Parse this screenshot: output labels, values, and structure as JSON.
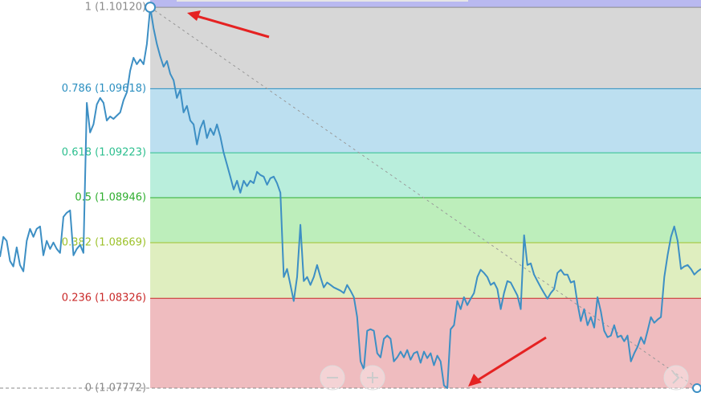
{
  "chart_data": {
    "type": "line",
    "ylim": [
      1.07668,
      1.10165
    ],
    "series": [
      {
        "color": "#3d8fc4",
        "values": [
          1.08581,
          1.08705,
          1.0868,
          1.08556,
          1.08522,
          1.0864,
          1.08531,
          1.08492,
          1.0868,
          1.08754,
          1.08705,
          1.08754,
          1.08769,
          1.08591,
          1.0868,
          1.0863,
          1.0867,
          1.0863,
          1.08606,
          1.08828,
          1.08853,
          1.08868,
          1.08591,
          1.0863,
          1.08655,
          1.08606,
          1.09531,
          1.09348,
          1.09398,
          1.09521,
          1.09561,
          1.09531,
          1.09422,
          1.09447,
          1.09432,
          1.09452,
          1.09472,
          1.09546,
          1.09596,
          1.09729,
          1.09809,
          1.09769,
          1.09799,
          1.09769,
          1.09893,
          1.1012,
          1.09992,
          1.09893,
          1.09818,
          1.09754,
          1.09789,
          1.0971,
          1.0967,
          1.09561,
          1.09611,
          1.09472,
          1.09512,
          1.09422,
          1.09398,
          1.09274,
          1.09373,
          1.09422,
          1.09314,
          1.09373,
          1.09333,
          1.09398,
          1.09323,
          1.09224,
          1.0915,
          1.09076,
          1.08997,
          1.09051,
          1.08977,
          1.09051,
          1.09017,
          1.09051,
          1.09036,
          1.09106,
          1.09086,
          1.09076,
          1.09026,
          1.09066,
          1.09076,
          1.09036,
          1.08977,
          1.08457,
          1.08507,
          1.08408,
          1.08309,
          1.08457,
          1.08779,
          1.08432,
          1.08457,
          1.08408,
          1.08457,
          1.08531,
          1.08457,
          1.08393,
          1.08423,
          1.08408,
          1.08393,
          1.08383,
          1.08373,
          1.08358,
          1.08408,
          1.08373,
          1.08333,
          1.0821,
          1.07937,
          1.07888,
          1.08126,
          1.08135,
          1.08126,
          1.07987,
          1.07962,
          1.08076,
          1.08096,
          1.08076,
          1.07937,
          1.07962,
          1.07997,
          1.07962,
          1.08007,
          1.07947,
          1.07987,
          1.07997,
          1.07928,
          1.07997,
          1.07957,
          1.07987,
          1.07913,
          1.07972,
          1.07937,
          1.07789,
          1.07772,
          1.08135,
          1.0816,
          1.08309,
          1.08259,
          1.08333,
          1.08284,
          1.08324,
          1.08358,
          1.08457,
          1.08502,
          1.08482,
          1.08457,
          1.08408,
          1.08423,
          1.08383,
          1.08259,
          1.08358,
          1.08432,
          1.08423,
          1.08383,
          1.08343,
          1.08259,
          1.08715,
          1.08531,
          1.08541,
          1.08472,
          1.08432,
          1.08393,
          1.08358,
          1.08324,
          1.08358,
          1.08383,
          1.08482,
          1.08502,
          1.08472,
          1.08472,
          1.08423,
          1.08432,
          1.08294,
          1.08185,
          1.08259,
          1.0816,
          1.0821,
          1.08145,
          1.08333,
          1.08244,
          1.08126,
          1.08086,
          1.08096,
          1.0816,
          1.08086,
          1.08096,
          1.08061,
          1.08096,
          1.07937,
          1.07987,
          1.08027,
          1.08086,
          1.08046,
          1.08126,
          1.0821,
          1.08175,
          1.08195,
          1.0821,
          1.08457,
          1.08591,
          1.08705,
          1.08769,
          1.0868,
          1.08507,
          1.08522,
          1.08531,
          1.08507,
          1.08472,
          1.08492,
          1.08507
        ]
      }
    ],
    "levels": [
      {
        "value": 1.1012,
        "label": "1 (1.10120)",
        "color": "#8a8a8a",
        "fill": "#d7d7d7"
      },
      {
        "value": 1.09618,
        "label": "0.786 (1.09618)",
        "color": "#2b8fc0",
        "fill": "#bcdff0"
      },
      {
        "value": 1.09223,
        "label": "0.618 (1.09223)",
        "color": "#2dbf8f",
        "fill": "#b9eedc"
      },
      {
        "value": 1.08946,
        "label": "0.5 (1.08946)",
        "color": "#2fae2f",
        "fill": "#bdeebb"
      },
      {
        "value": 1.08669,
        "label": "0.382 (1.08669)",
        "color": "#9ec22c",
        "fill": "#dfeebf"
      },
      {
        "value": 1.08326,
        "label": "0.236 (1.08326)",
        "color": "#c92828",
        "fill": "#efbcbf"
      },
      {
        "value": 1.07772,
        "label": "0 (1.07772)",
        "color": "#8a8a8a"
      }
    ]
  }
}
